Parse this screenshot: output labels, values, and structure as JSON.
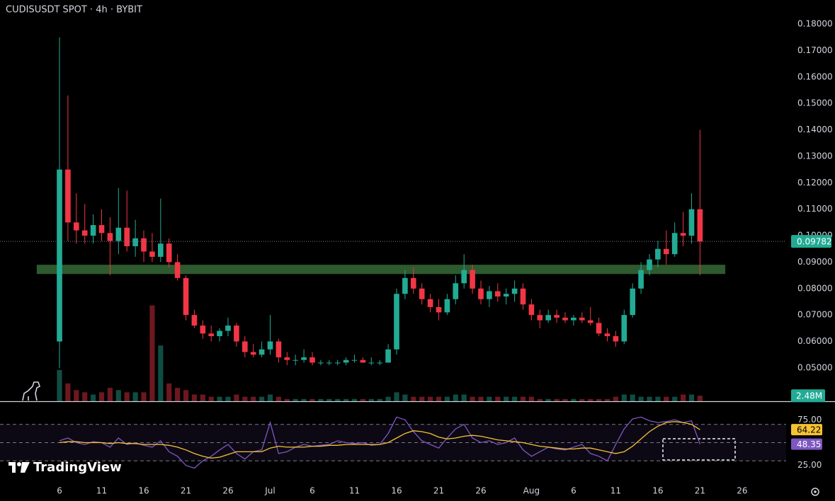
{
  "header": {
    "title": "CUDISUSDT SPOT · 4h · BYBIT",
    "watermark": "TradingView"
  },
  "chart_data": [
    {
      "type": "candlestick",
      "up_color": "#22ab94",
      "down_color": "#f23645",
      "open": [
        0.06,
        0.125,
        0.105,
        0.102,
        0.1,
        0.104,
        0.101,
        0.098,
        0.103,
        0.096,
        0.099,
        0.094,
        0.092,
        0.097,
        0.09,
        0.084,
        0.07,
        0.066,
        0.063,
        0.062,
        0.064,
        0.066,
        0.06,
        0.056,
        0.055,
        0.057,
        0.06,
        0.054,
        0.053,
        0.053,
        0.054,
        0.052,
        0.052,
        0.052,
        0.052,
        0.053,
        0.053,
        0.052,
        0.052,
        0.052,
        0.057,
        0.078,
        0.084,
        0.08,
        0.076,
        0.073,
        0.071,
        0.076,
        0.082,
        0.087,
        0.08,
        0.076,
        0.079,
        0.077,
        0.078,
        0.08,
        0.074,
        0.07,
        0.068,
        0.07,
        0.069,
        0.068,
        0.069,
        0.068,
        0.067,
        0.063,
        0.062,
        0.06,
        0.07,
        0.08,
        0.087,
        0.091,
        0.095,
        0.093,
        0.101,
        0.1,
        0.11
      ],
      "high": [
        0.175,
        0.153,
        0.116,
        0.112,
        0.108,
        0.11,
        0.107,
        0.118,
        0.117,
        0.106,
        0.102,
        0.101,
        0.114,
        0.099,
        0.093,
        0.085,
        0.072,
        0.068,
        0.066,
        0.065,
        0.069,
        0.067,
        0.062,
        0.059,
        0.06,
        0.07,
        0.061,
        0.056,
        0.055,
        0.057,
        0.056,
        0.053,
        0.053,
        0.053,
        0.054,
        0.055,
        0.054,
        0.054,
        0.053,
        0.059,
        0.08,
        0.087,
        0.088,
        0.082,
        0.078,
        0.076,
        0.078,
        0.085,
        0.093,
        0.089,
        0.083,
        0.081,
        0.082,
        0.08,
        0.083,
        0.082,
        0.076,
        0.072,
        0.072,
        0.072,
        0.071,
        0.07,
        0.071,
        0.073,
        0.069,
        0.065,
        0.064,
        0.072,
        0.082,
        0.09,
        0.093,
        0.098,
        0.102,
        0.105,
        0.109,
        0.116,
        0.14
      ],
      "low": [
        0.05,
        0.098,
        0.097,
        0.097,
        0.097,
        0.098,
        0.085,
        0.093,
        0.094,
        0.092,
        0.09,
        0.09,
        0.09,
        0.088,
        0.083,
        0.068,
        0.065,
        0.061,
        0.06,
        0.06,
        0.062,
        0.058,
        0.054,
        0.054,
        0.054,
        0.055,
        0.052,
        0.051,
        0.051,
        0.052,
        0.051,
        0.051,
        0.051,
        0.051,
        0.051,
        0.052,
        0.052,
        0.051,
        0.051,
        0.052,
        0.055,
        0.076,
        0.078,
        0.074,
        0.071,
        0.068,
        0.07,
        0.074,
        0.08,
        0.078,
        0.074,
        0.073,
        0.075,
        0.074,
        0.075,
        0.072,
        0.068,
        0.065,
        0.067,
        0.067,
        0.067,
        0.066,
        0.067,
        0.066,
        0.062,
        0.06,
        0.058,
        0.059,
        0.069,
        0.078,
        0.085,
        0.088,
        0.089,
        0.092,
        0.096,
        0.097,
        0.085
      ],
      "close": [
        0.125,
        0.105,
        0.102,
        0.1,
        0.104,
        0.101,
        0.098,
        0.103,
        0.096,
        0.099,
        0.094,
        0.092,
        0.097,
        0.09,
        0.084,
        0.07,
        0.066,
        0.063,
        0.062,
        0.064,
        0.066,
        0.06,
        0.056,
        0.055,
        0.057,
        0.06,
        0.054,
        0.053,
        0.053,
        0.054,
        0.052,
        0.052,
        0.052,
        0.052,
        0.053,
        0.053,
        0.052,
        0.052,
        0.052,
        0.057,
        0.078,
        0.084,
        0.08,
        0.076,
        0.073,
        0.071,
        0.076,
        0.082,
        0.087,
        0.08,
        0.076,
        0.079,
        0.077,
        0.078,
        0.08,
        0.074,
        0.07,
        0.068,
        0.07,
        0.069,
        0.068,
        0.069,
        0.068,
        0.067,
        0.063,
        0.062,
        0.06,
        0.07,
        0.08,
        0.087,
        0.091,
        0.095,
        0.093,
        0.101,
        0.1,
        0.11,
        0.09782
      ],
      "ylim": [
        0.0374,
        0.1891
      ],
      "yticks": [
        {
          "value": 0.05,
          "label": "0.05000"
        },
        {
          "value": 0.06,
          "label": "0.06000"
        },
        {
          "value": 0.07,
          "label": "0.07000"
        },
        {
          "value": 0.08,
          "label": "0.08000"
        },
        {
          "value": 0.09,
          "label": "0.09000"
        },
        {
          "value": 0.1,
          "label": "0.10000"
        },
        {
          "value": 0.11,
          "label": "0.11000"
        },
        {
          "value": 0.12,
          "label": "0.12000"
        },
        {
          "value": 0.13,
          "label": "0.13000"
        },
        {
          "value": 0.14,
          "label": "0.14000"
        },
        {
          "value": 0.15,
          "label": "0.15000"
        },
        {
          "value": 0.16,
          "label": "0.16000"
        },
        {
          "value": 0.17,
          "label": "0.17000"
        },
        {
          "value": 0.18,
          "label": "0.18000"
        }
      ],
      "xlim": [
        -7.06,
        86.22
      ],
      "xticks": [
        {
          "value": 0,
          "label": "6"
        },
        {
          "value": 5,
          "label": "11"
        },
        {
          "value": 10,
          "label": "16"
        },
        {
          "value": 15,
          "label": "21"
        },
        {
          "value": 20,
          "label": "26"
        },
        {
          "value": 25,
          "label": "Jul"
        },
        {
          "value": 30,
          "label": "6"
        },
        {
          "value": 35,
          "label": "11"
        },
        {
          "value": 40,
          "label": "16"
        },
        {
          "value": 45,
          "label": "21"
        },
        {
          "value": 50,
          "label": "26"
        },
        {
          "value": 56,
          "label": "Aug"
        },
        {
          "value": 61,
          "label": "6"
        },
        {
          "value": 66,
          "label": "11"
        },
        {
          "value": 71,
          "label": "16"
        },
        {
          "value": 76,
          "label": "21"
        },
        {
          "value": 81,
          "label": "26"
        }
      ],
      "zone": {
        "low": 0.0855,
        "high": 0.089,
        "x": [
          -2.7,
          79
        ],
        "color": "#2d5a2e"
      },
      "volume": {
        "values": [
          14,
          8,
          5,
          4,
          3,
          4,
          6,
          5,
          4,
          4,
          4,
          43,
          25,
          8,
          6,
          5,
          3,
          3,
          2,
          2,
          2,
          3,
          2,
          2,
          2,
          3,
          2,
          1,
          1,
          1,
          1,
          1,
          1,
          1,
          1,
          1,
          1,
          1,
          1,
          2,
          4,
          3,
          2,
          2,
          2,
          2,
          2,
          3,
          3,
          2,
          2,
          2,
          2,
          2,
          2,
          2,
          2,
          1,
          1,
          1,
          1,
          1,
          1,
          1,
          1,
          1,
          2,
          3,
          3,
          2,
          2,
          2,
          2,
          2,
          3,
          3,
          2.48
        ],
        "ylim": [
          0,
          180
        ],
        "last_label": "2.48M",
        "label_color": "#22ab94"
      }
    },
    {
      "type": "line",
      "series": [
        {
          "color": "#7e57c2",
          "values": [
            52,
            55,
            50,
            48,
            51,
            50,
            45,
            55,
            48,
            50,
            47,
            45,
            52,
            40,
            35,
            25,
            22,
            30,
            35,
            42,
            48,
            38,
            32,
            40,
            42,
            72,
            38,
            40,
            45,
            48,
            46,
            47,
            48,
            52,
            50,
            49,
            50,
            47,
            48,
            60,
            78,
            75,
            62,
            52,
            48,
            44,
            55,
            65,
            70,
            55,
            50,
            52,
            48,
            50,
            55,
            42,
            35,
            40,
            45,
            43,
            42,
            45,
            48,
            38,
            35,
            30,
            48,
            65,
            76,
            78,
            74,
            72,
            73,
            75,
            72,
            74,
            48.35
          ]
        },
        {
          "color": "#f5c233",
          "values": [
            50,
            51,
            51,
            50,
            50,
            50,
            49,
            50,
            49,
            49,
            48,
            48,
            48,
            47,
            45,
            42,
            38,
            35,
            33,
            34,
            37,
            40,
            40,
            40,
            40,
            44,
            46,
            45,
            45,
            45,
            46,
            46,
            47,
            47,
            48,
            48,
            48,
            48,
            48,
            50,
            55,
            60,
            63,
            62,
            60,
            56,
            54,
            55,
            57,
            58,
            57,
            55,
            53,
            52,
            51,
            50,
            48,
            46,
            45,
            44,
            43,
            43,
            44,
            44,
            42,
            40,
            38,
            40,
            46,
            54,
            62,
            68,
            72,
            73,
            72,
            70,
            64.22
          ]
        }
      ],
      "ylim": [
        7.7,
        94.6
      ],
      "yticks": [
        {
          "value": 75,
          "label": "75.00"
        },
        {
          "value": 25,
          "label": "25.00"
        }
      ],
      "levels": [
        70,
        50,
        30
      ]
    }
  ]
}
